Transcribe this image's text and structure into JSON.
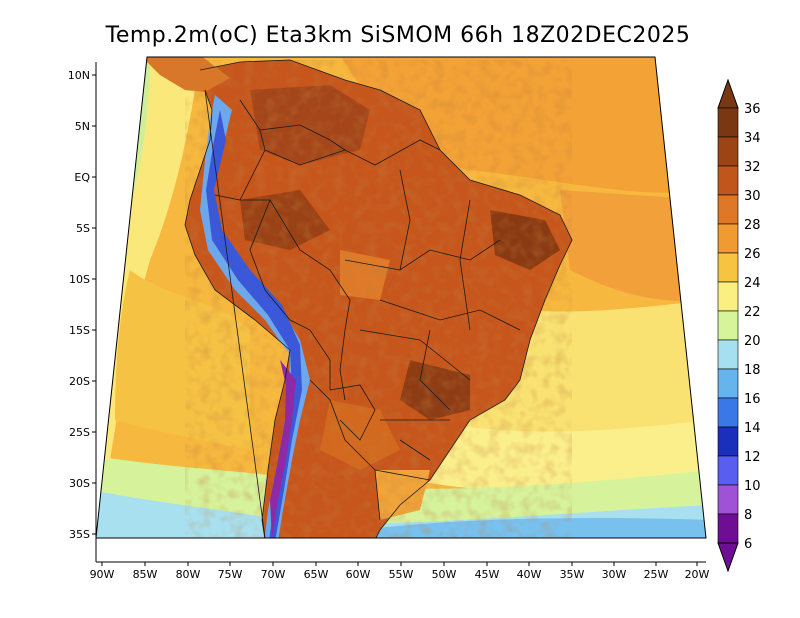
{
  "title": "Temp.2m(oC) Eta3km SiSMOM 66h 18Z02DEC2025",
  "lat_labels": [
    "10N",
    "5N",
    "EQ",
    "5S",
    "10S",
    "15S",
    "20S",
    "25S",
    "30S",
    "35S"
  ],
  "lon_labels": [
    "90W",
    "85W",
    "80W",
    "75W",
    "70W",
    "65W",
    "60W",
    "55W",
    "50W",
    "45W",
    "40W",
    "35W",
    "30W",
    "25W",
    "20W"
  ],
  "colorbar": {
    "labels": [
      "36",
      "34",
      "32",
      "30",
      "28",
      "26",
      "24",
      "22",
      "20",
      "18",
      "16",
      "14",
      "12",
      "10",
      "8",
      "6"
    ],
    "colors": [
      "#7a3812",
      "#9c4414",
      "#c0561c",
      "#de7826",
      "#f09a32",
      "#f6c440",
      "#fbef82",
      "#d6f59a",
      "#a6e0f0",
      "#66b4ec",
      "#3a78e8",
      "#1a2fbc",
      "#5a5ef0",
      "#a052d6",
      "#6e0e92"
    ]
  },
  "palette": {
    "ocean_warm": "#f4a93a",
    "ocean_mid": "#f7c548",
    "ocean_cool": "#fbe57a",
    "ocean_green": "#d2f09a",
    "ocean_cold": "#8ed6ec",
    "land_hot": "#c8581c",
    "land_very_hot": "#8e3c12",
    "andes": "#5a8ee8"
  }
}
